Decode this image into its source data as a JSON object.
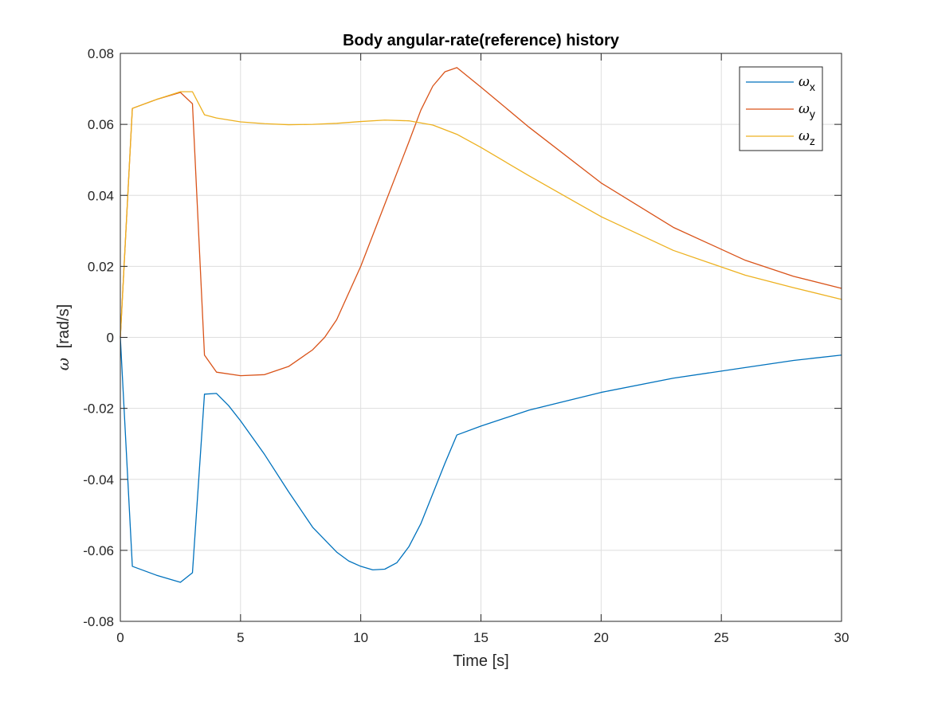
{
  "chart_data": {
    "type": "line",
    "title": "Body angular-rate(reference) history",
    "xlabel": "Time [s]",
    "ylabel": "ω [rad/s]",
    "ylabel_symbol": "ω",
    "ylabel_unit": "[rad/s]",
    "xlim": [
      0,
      30
    ],
    "ylim": [
      -0.08,
      0.08
    ],
    "xticks": [
      0,
      5,
      10,
      15,
      20,
      25,
      30
    ],
    "xtick_labels": [
      "0",
      "5",
      "10",
      "15",
      "20",
      "25",
      "30"
    ],
    "yticks": [
      -0.08,
      -0.06,
      -0.04,
      -0.02,
      0,
      0.02,
      0.04,
      0.06,
      0.08
    ],
    "ytick_labels": [
      "-0.08",
      "-0.06",
      "-0.04",
      "-0.02",
      "0",
      "0.02",
      "0.04",
      "0.06",
      "0.08"
    ],
    "grid": true,
    "legend_position": "top-right",
    "series": [
      {
        "name": "ωx",
        "symbol": "ω",
        "subscript": "x",
        "color": "#0072BD",
        "x": [
          0,
          0.5,
          1.5,
          2.5,
          3,
          3.5,
          4,
          4.5,
          5,
          6,
          7,
          8,
          9,
          9.5,
          10,
          10.5,
          11,
          11.5,
          12,
          12.5,
          13,
          13.5,
          14,
          15,
          17,
          20,
          23,
          26,
          28,
          30
        ],
        "y": [
          0,
          -0.0645,
          -0.067,
          -0.069,
          -0.0663,
          -0.016,
          -0.0158,
          -0.0192,
          -0.0235,
          -0.033,
          -0.0435,
          -0.0535,
          -0.0605,
          -0.063,
          -0.0645,
          -0.0655,
          -0.0653,
          -0.0635,
          -0.059,
          -0.0525,
          -0.044,
          -0.0355,
          -0.0275,
          -0.025,
          -0.0205,
          -0.0155,
          -0.0115,
          -0.0085,
          -0.0065,
          -0.005
        ]
      },
      {
        "name": "ωy",
        "symbol": "ω",
        "subscript": "y",
        "color": "#D95319",
        "x": [
          0,
          0.5,
          1.5,
          2.5,
          3,
          3.5,
          4,
          5,
          6,
          7,
          8,
          8.5,
          9,
          10,
          11,
          12,
          12.5,
          13,
          13.5,
          14,
          15,
          17,
          20,
          23,
          26,
          28,
          30
        ],
        "y": [
          0,
          0.0645,
          0.067,
          0.069,
          0.0658,
          -0.005,
          -0.0098,
          -0.0108,
          -0.0105,
          -0.0082,
          -0.0035,
          0,
          0.005,
          0.02,
          0.0375,
          0.055,
          0.064,
          0.0708,
          0.0748,
          0.076,
          0.0705,
          0.0592,
          0.0435,
          0.031,
          0.0217,
          0.0172,
          0.0138
        ]
      },
      {
        "name": "ωz",
        "symbol": "ω",
        "subscript": "z",
        "color": "#EDB120",
        "x": [
          0,
          0.5,
          1.5,
          2.5,
          3,
          3.5,
          4,
          5,
          6,
          7,
          8,
          9,
          10,
          11,
          12,
          13,
          14,
          15,
          17,
          20,
          23,
          26,
          28,
          30
        ],
        "y": [
          0,
          0.0645,
          0.067,
          0.0692,
          0.0692,
          0.0627,
          0.0618,
          0.0607,
          0.0602,
          0.0599,
          0.06,
          0.0603,
          0.0608,
          0.0612,
          0.061,
          0.0598,
          0.0572,
          0.0535,
          0.0455,
          0.034,
          0.0245,
          0.0175,
          0.014,
          0.0107
        ]
      }
    ]
  }
}
